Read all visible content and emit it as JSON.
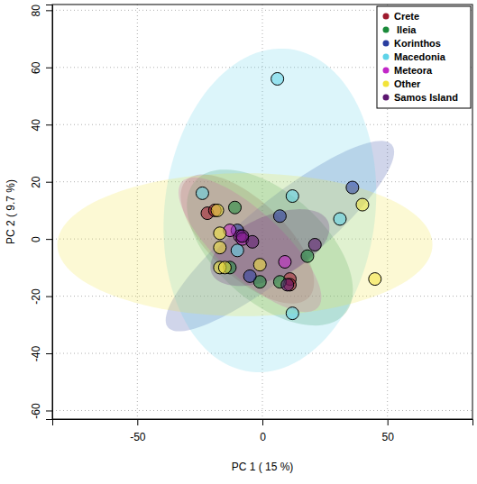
{
  "chart_data": {
    "type": "scatter",
    "xlabel": "PC 1 ( 15 %)",
    "ylabel": "PC 2 ( 9.7 %)",
    "xlim": [
      -84,
      84
    ],
    "ylim": [
      -63,
      82
    ],
    "xticks": [
      -50,
      0,
      50
    ],
    "yticks": [
      -60,
      -40,
      -20,
      0,
      20,
      40,
      60,
      80
    ],
    "grid": true,
    "legend": "top-right",
    "marker": "circle",
    "series": [
      {
        "name": "Crete",
        "color": "#9e1a2e",
        "x": [
          -22,
          -19,
          11,
          11
        ],
        "values": [
          9,
          10,
          -14,
          -16
        ],
        "ellipse": {
          "cx": -6,
          "cy": 0,
          "rx": 32,
          "ry": 14,
          "angle": -38
        }
      },
      {
        "name": " Ileia",
        "color": "#1a8a3a",
        "x": [
          -11,
          18,
          7,
          -1,
          -13
        ],
        "values": [
          11,
          -6,
          -15,
          -15,
          -10
        ],
        "ellipse": {
          "cx": 3,
          "cy": -3,
          "rx": 38,
          "ry": 20,
          "angle": -35
        }
      },
      {
        "name": "Korinthos",
        "color": "#2a3ea0",
        "x": [
          36,
          7,
          -5,
          -10
        ],
        "values": [
          18,
          8,
          -13,
          3
        ],
        "ellipse": {
          "cx": 7,
          "cy": 1,
          "rx": 55,
          "ry": 13,
          "angle": 35
        }
      },
      {
        "name": "Macedonia",
        "color": "#5fd3e8",
        "x": [
          6,
          -24,
          12,
          31,
          12,
          -10
        ],
        "values": [
          56,
          16,
          15,
          7,
          -26,
          -4
        ],
        "ellipse": {
          "cx": 3,
          "cy": 10,
          "rx": 57,
          "ry": 42,
          "angle": 80
        }
      },
      {
        "name": "Meteora",
        "color": "#c227c8",
        "x": [
          -9,
          9,
          -13,
          -8
        ],
        "values": [
          1,
          -8,
          3,
          0
        ],
        "ellipse": {
          "cx": -5,
          "cy": -2,
          "rx": 35,
          "ry": 12,
          "angle": -38
        }
      },
      {
        "name": "Other",
        "color": "#f2e33a",
        "x": [
          40,
          45,
          -17,
          -15,
          -18,
          -17,
          -17,
          -1
        ],
        "values": [
          12,
          -14,
          -10,
          -10,
          10,
          2,
          -3,
          -9
        ],
        "ellipse": {
          "cx": -7,
          "cy": -2,
          "rx": 75,
          "ry": 25,
          "angle": 0
        }
      },
      {
        "name": "Samos Island",
        "color": "#5c1670",
        "x": [
          21,
          -4,
          -8,
          10
        ],
        "values": [
          -2,
          -1,
          1,
          -16
        ],
        "ellipse": {
          "cx": 3,
          "cy": -3,
          "rx": 25,
          "ry": 11,
          "angle": 20
        }
      }
    ]
  }
}
